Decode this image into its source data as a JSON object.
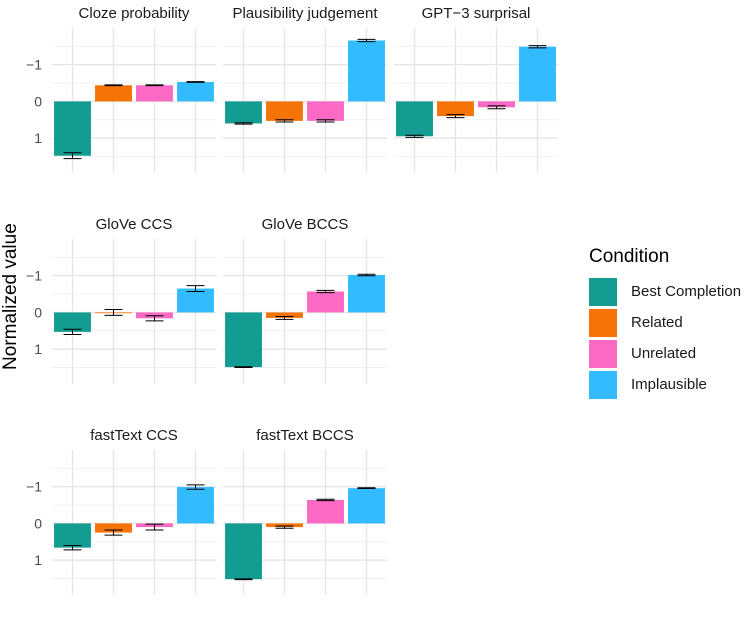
{
  "chart_data": {
    "type": "bar",
    "ylabel": "Normalized value",
    "y_axis_reversed": true,
    "ylim": [
      1.95,
      -2.0
    ],
    "y_ticks": [
      -1,
      0,
      1
    ],
    "y_tick_labels": [
      "−1",
      "0",
      "1"
    ],
    "categories": [
      "Best Completion",
      "Related",
      "Unrelated",
      "Implausible"
    ],
    "legend": {
      "title": "Condition",
      "position": "right",
      "entries": [
        "Best Completion",
        "Related",
        "Unrelated",
        "Implausible"
      ],
      "colors": [
        "#139C91",
        "#F57307",
        "#FA69C4",
        "#33BBFF"
      ]
    },
    "panels": [
      {
        "title": "Cloze probability",
        "values": [
          1.48,
          -0.44,
          -0.44,
          -0.53
        ],
        "errors": [
          0.08,
          0.01,
          0.01,
          0.01
        ]
      },
      {
        "title": "Plausibility judgement",
        "values": [
          0.6,
          0.53,
          0.53,
          -1.66
        ],
        "errors": [
          0.02,
          0.03,
          0.03,
          0.03
        ]
      },
      {
        "title": "GPT−3 surprisal",
        "values": [
          0.95,
          0.4,
          0.16,
          -1.49
        ],
        "errors": [
          0.03,
          0.04,
          0.04,
          0.03
        ]
      },
      {
        "title": "GloVe CCS",
        "values": [
          0.53,
          0.0,
          0.16,
          -0.65
        ],
        "errors": [
          0.07,
          0.08,
          0.07,
          0.08
        ]
      },
      {
        "title": "GloVe BCCS",
        "values": [
          1.49,
          0.15,
          -0.57,
          -1.02
        ],
        "errors": [
          0.01,
          0.04,
          0.03,
          0.02
        ]
      },
      {
        "title": "fastText CCS",
        "values": [
          0.66,
          0.25,
          0.1,
          -0.99
        ],
        "errors": [
          0.06,
          0.07,
          0.08,
          0.06
        ]
      },
      {
        "title": "fastText BCCS",
        "values": [
          1.52,
          0.1,
          -0.64,
          -0.96
        ],
        "errors": [
          0.01,
          0.03,
          0.02,
          0.01
        ]
      }
    ]
  }
}
